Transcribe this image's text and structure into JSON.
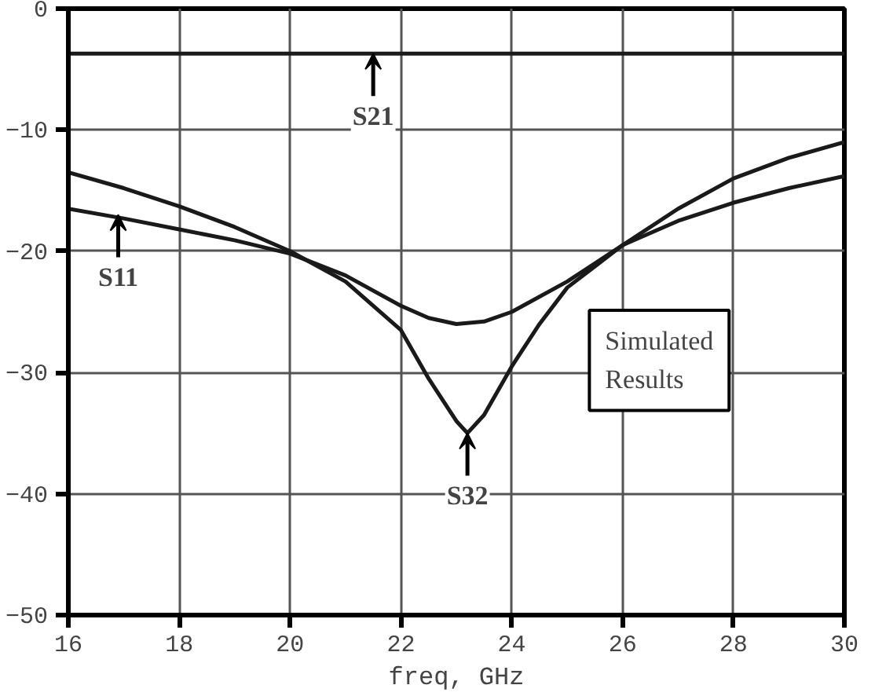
{
  "chart_data": {
    "type": "line",
    "xlabel": "freq, GHz",
    "xlim": [
      16,
      30
    ],
    "ylim": [
      -50,
      0
    ],
    "xticks": [
      16,
      18,
      20,
      22,
      24,
      26,
      28,
      30
    ],
    "yticks": [
      0,
      -10,
      -20,
      -30,
      -40,
      -50
    ],
    "grid": true,
    "marker": "none",
    "line_style": "solid",
    "series": [
      {
        "color": "#1a1a1a",
        "x": [
          16,
          18,
          20,
          22,
          24,
          26,
          28,
          30
        ],
        "values": [
          -3.7,
          -3.7,
          -3.7,
          -3.7,
          -3.7,
          -3.7,
          -3.7,
          -3.7
        ]
      },
      {
        "color": "#1a1a1a",
        "x": [
          16,
          17,
          18,
          19,
          20,
          21,
          22,
          22.5,
          23,
          23.5,
          24,
          25,
          26,
          27,
          28,
          29,
          30
        ],
        "values": [
          -16.5,
          -17.3,
          -18.2,
          -19.1,
          -20.2,
          -22,
          -24.5,
          -25.5,
          -26,
          -25.8,
          -25,
          -22.5,
          -19.5,
          -17.5,
          -16,
          -14.8,
          -13.8
        ]
      },
      {
        "color": "#1a1a1a",
        "x": [
          16,
          17,
          18,
          19,
          20,
          21,
          22,
          22.5,
          23,
          23.2,
          23.5,
          24,
          24.5,
          25,
          26,
          27,
          28,
          29,
          30
        ],
        "values": [
          -13.5,
          -14.8,
          -16.3,
          -18,
          -20,
          -22.5,
          -26.5,
          -30.5,
          -34,
          -35,
          -33.5,
          -29.5,
          -26,
          -23,
          -19.5,
          -16.5,
          -14,
          -12.3,
          -11
        ]
      }
    ],
    "annotations": [
      {
        "text": "S21",
        "x": 21.5,
        "y": -3.7
      },
      {
        "text": "S11",
        "x": 16.9,
        "y": -17
      },
      {
        "text": "S32",
        "x": 23.2,
        "y": -35
      },
      "Simulated\nResults"
    ]
  }
}
